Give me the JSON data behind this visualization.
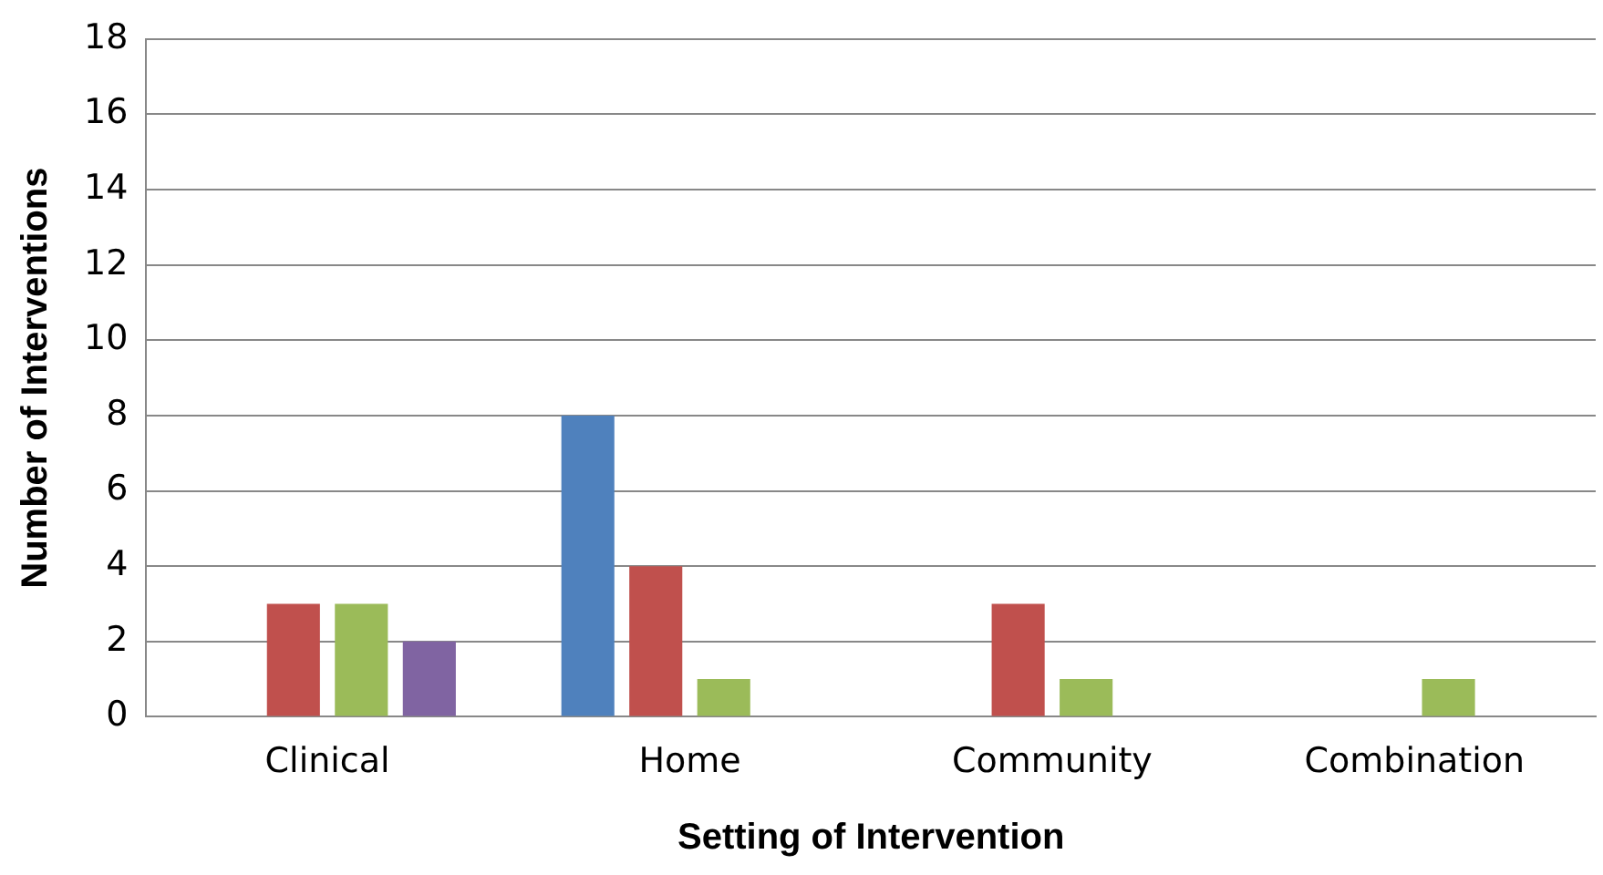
{
  "chart_data": {
    "type": "bar",
    "xlabel": "Setting of Intervention",
    "ylabel": "Number of Interventions",
    "categories": [
      "Clinical",
      "Home",
      "Community",
      "Combination"
    ],
    "series": [
      {
        "color": "#4f81bd",
        "values": [
          0,
          8,
          0,
          0
        ]
      },
      {
        "color": "#c0504d",
        "values": [
          3,
          4,
          3,
          0
        ]
      },
      {
        "color": "#9bbb59",
        "values": [
          3,
          1,
          1,
          1
        ]
      },
      {
        "color": "#8064a2",
        "values": [
          2,
          0,
          0,
          0
        ]
      }
    ],
    "ylim": [
      0,
      18
    ],
    "yticks": [
      0,
      2,
      4,
      6,
      8,
      10,
      12,
      14,
      16,
      18
    ],
    "grid": "y",
    "legend": false
  }
}
